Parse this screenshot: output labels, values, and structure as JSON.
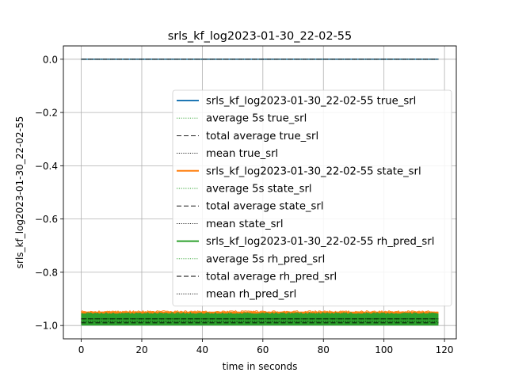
{
  "chart_data": {
    "type": "line",
    "title": "srls_kf_log2023-01-30_22-02-55",
    "xlabel": "time in seconds",
    "ylabel": "srls_kf_log2023-01-30_22-02-55",
    "xlim": [
      -5.9,
      123.9
    ],
    "ylim": [
      -1.05,
      0.05
    ],
    "xticks": [
      0,
      20,
      40,
      60,
      80,
      100,
      120
    ],
    "xtick_labels": [
      "0",
      "20",
      "40",
      "60",
      "80",
      "100",
      "120"
    ],
    "yticks": [
      0.0,
      -0.2,
      -0.4,
      -0.6,
      -0.8,
      -1.0
    ],
    "ytick_labels": [
      "0.0",
      "−0.2",
      "−0.4",
      "−0.6",
      "−0.8",
      "−1.0"
    ],
    "grid": true,
    "legend_position": "center-right",
    "x_range": [
      0,
      118
    ],
    "series": [
      {
        "name": "srls_kf_log2023-01-30_22-02-55 true_srl",
        "color": "#1f77b4",
        "style": "solid",
        "x": [
          0,
          118
        ],
        "y": [
          0.0,
          0.0
        ]
      },
      {
        "name": "average 5s true_srl",
        "color": "#2ca02c",
        "style": "dotted",
        "x": [
          0,
          118
        ],
        "y": [
          0.0,
          0.0
        ]
      },
      {
        "name": "total average true_srl",
        "color": "#000000",
        "style": "dashed",
        "x": [
          0,
          118
        ],
        "y": [
          0.0,
          0.0
        ]
      },
      {
        "name": "mean true_srl",
        "color": "#000000",
        "style": "dotted",
        "x": [
          0,
          118
        ],
        "y": [
          0.0,
          0.0
        ]
      },
      {
        "name": "srls_kf_log2023-01-30_22-02-55 state_srl",
        "color": "#ff7f0e",
        "style": "band",
        "x": [
          0,
          118
        ],
        "band": [
          -0.995,
          -0.948
        ]
      },
      {
        "name": "average 5s state_srl",
        "color": "#2ca02c",
        "style": "dotted",
        "x": [
          0,
          118
        ],
        "y": [
          -0.975,
          -0.975
        ]
      },
      {
        "name": "total average state_srl",
        "color": "#000000",
        "style": "dashed",
        "x": [
          0,
          118
        ],
        "y": [
          -0.975,
          -0.975
        ]
      },
      {
        "name": "mean state_srl",
        "color": "#000000",
        "style": "dotted",
        "x": [
          0,
          118
        ],
        "y": [
          -0.975,
          -0.975
        ]
      },
      {
        "name": "srls_kf_log2023-01-30_22-02-55 rh_pred_srl",
        "color": "#2ca02c",
        "style": "band",
        "x": [
          0,
          118
        ],
        "band": [
          -1.0,
          -0.955
        ]
      },
      {
        "name": "average 5s rh_pred_srl",
        "color": "#2ca02c",
        "style": "dotted",
        "x": [
          0,
          118
        ],
        "y": [
          -0.99,
          -0.99
        ]
      },
      {
        "name": "total average rh_pred_srl",
        "color": "#000000",
        "style": "dashed",
        "x": [
          0,
          118
        ],
        "y": [
          -0.99,
          -0.99
        ]
      },
      {
        "name": "mean rh_pred_srl",
        "color": "#000000",
        "style": "dotted",
        "x": [
          0,
          118
        ],
        "y": [
          -0.985,
          -0.985
        ]
      }
    ]
  }
}
